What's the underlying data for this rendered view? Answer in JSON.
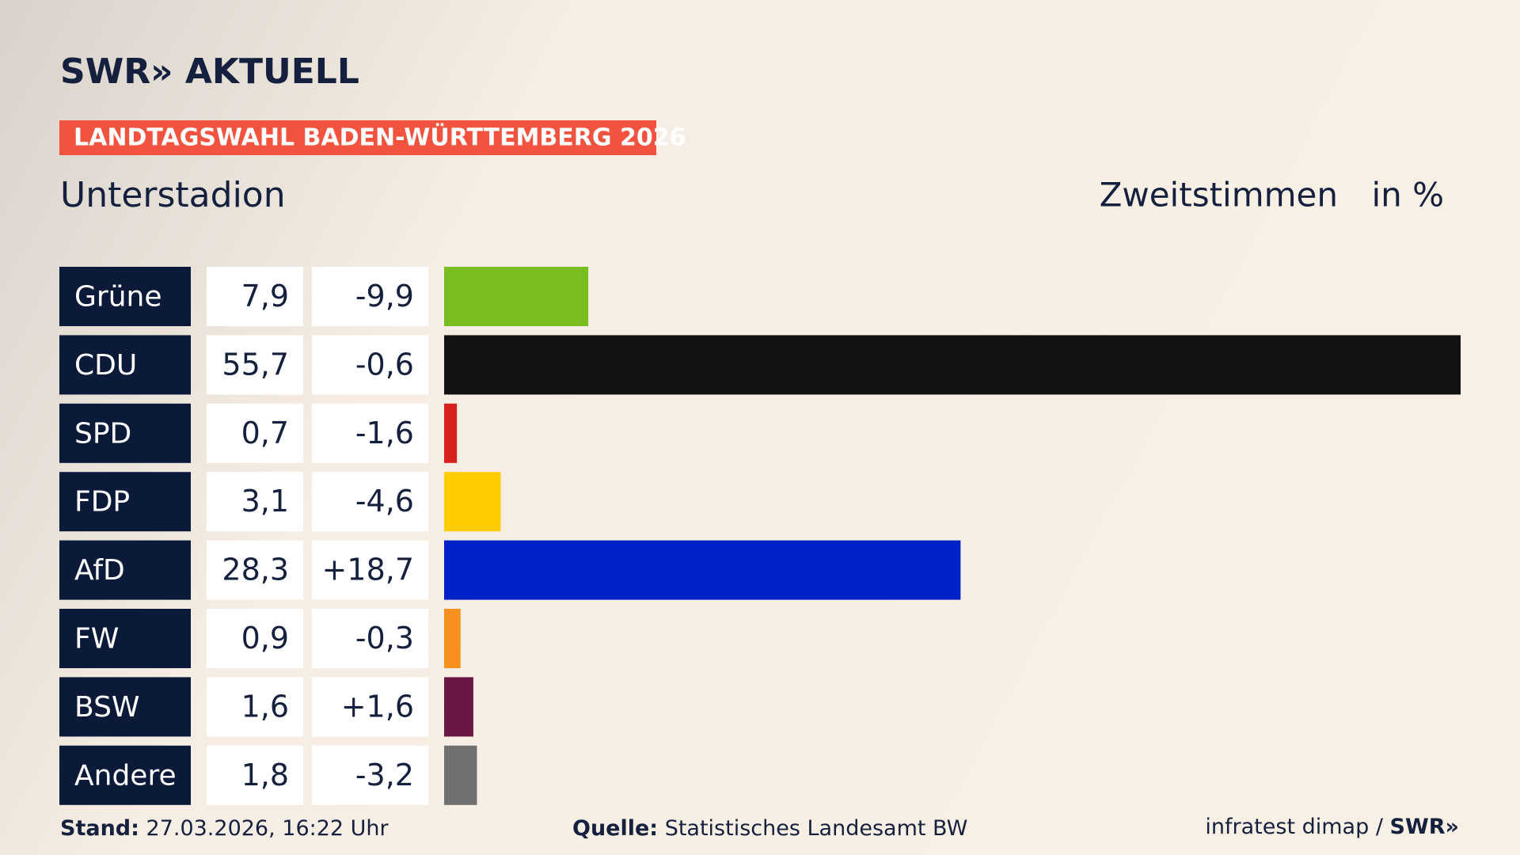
{
  "chart_data": {
    "type": "bar",
    "brand": "SWR» AKTUELL",
    "banner": "LANDTAGSWAHL BADEN-WÜRTTEMBERG 2026",
    "title": "Unterstadion",
    "measure": "Zweitstimmen",
    "unit": "in %",
    "categories": [
      "Grüne",
      "CDU",
      "SPD",
      "FDP",
      "AfD",
      "FW",
      "BSW",
      "Andere"
    ],
    "values": [
      7.9,
      55.7,
      0.7,
      3.1,
      28.3,
      0.9,
      1.6,
      1.8
    ],
    "value_labels": [
      "7,9",
      "55,7",
      "0,7",
      "3,1",
      "28,3",
      "0,9",
      "1,6",
      "1,8"
    ],
    "colors": [
      "#78be1e",
      "#121212",
      "#d71f1d",
      "#ffcc00",
      "#0021c8",
      "#f7901e",
      "#6b1744",
      "#707070"
    ],
    "changes": {
      "values": [
        -9.9,
        -0.6,
        -1.6,
        -4.6,
        18.7,
        -0.3,
        1.6,
        -3.2
      ],
      "value_labels": [
        "-9,9",
        "-0,6",
        "-1,6",
        "-4,6",
        "+18,7",
        "-0,3",
        "+1,6",
        "-3,2"
      ]
    },
    "footer": {
      "stand_label": "Stand:",
      "stand": "27.03.2026, 16:22 Uhr",
      "source_label": "Quelle:",
      "source": "Statistisches Landesamt BW",
      "credit": "infratest dimap /",
      "credit_brand": "SWR»"
    }
  }
}
